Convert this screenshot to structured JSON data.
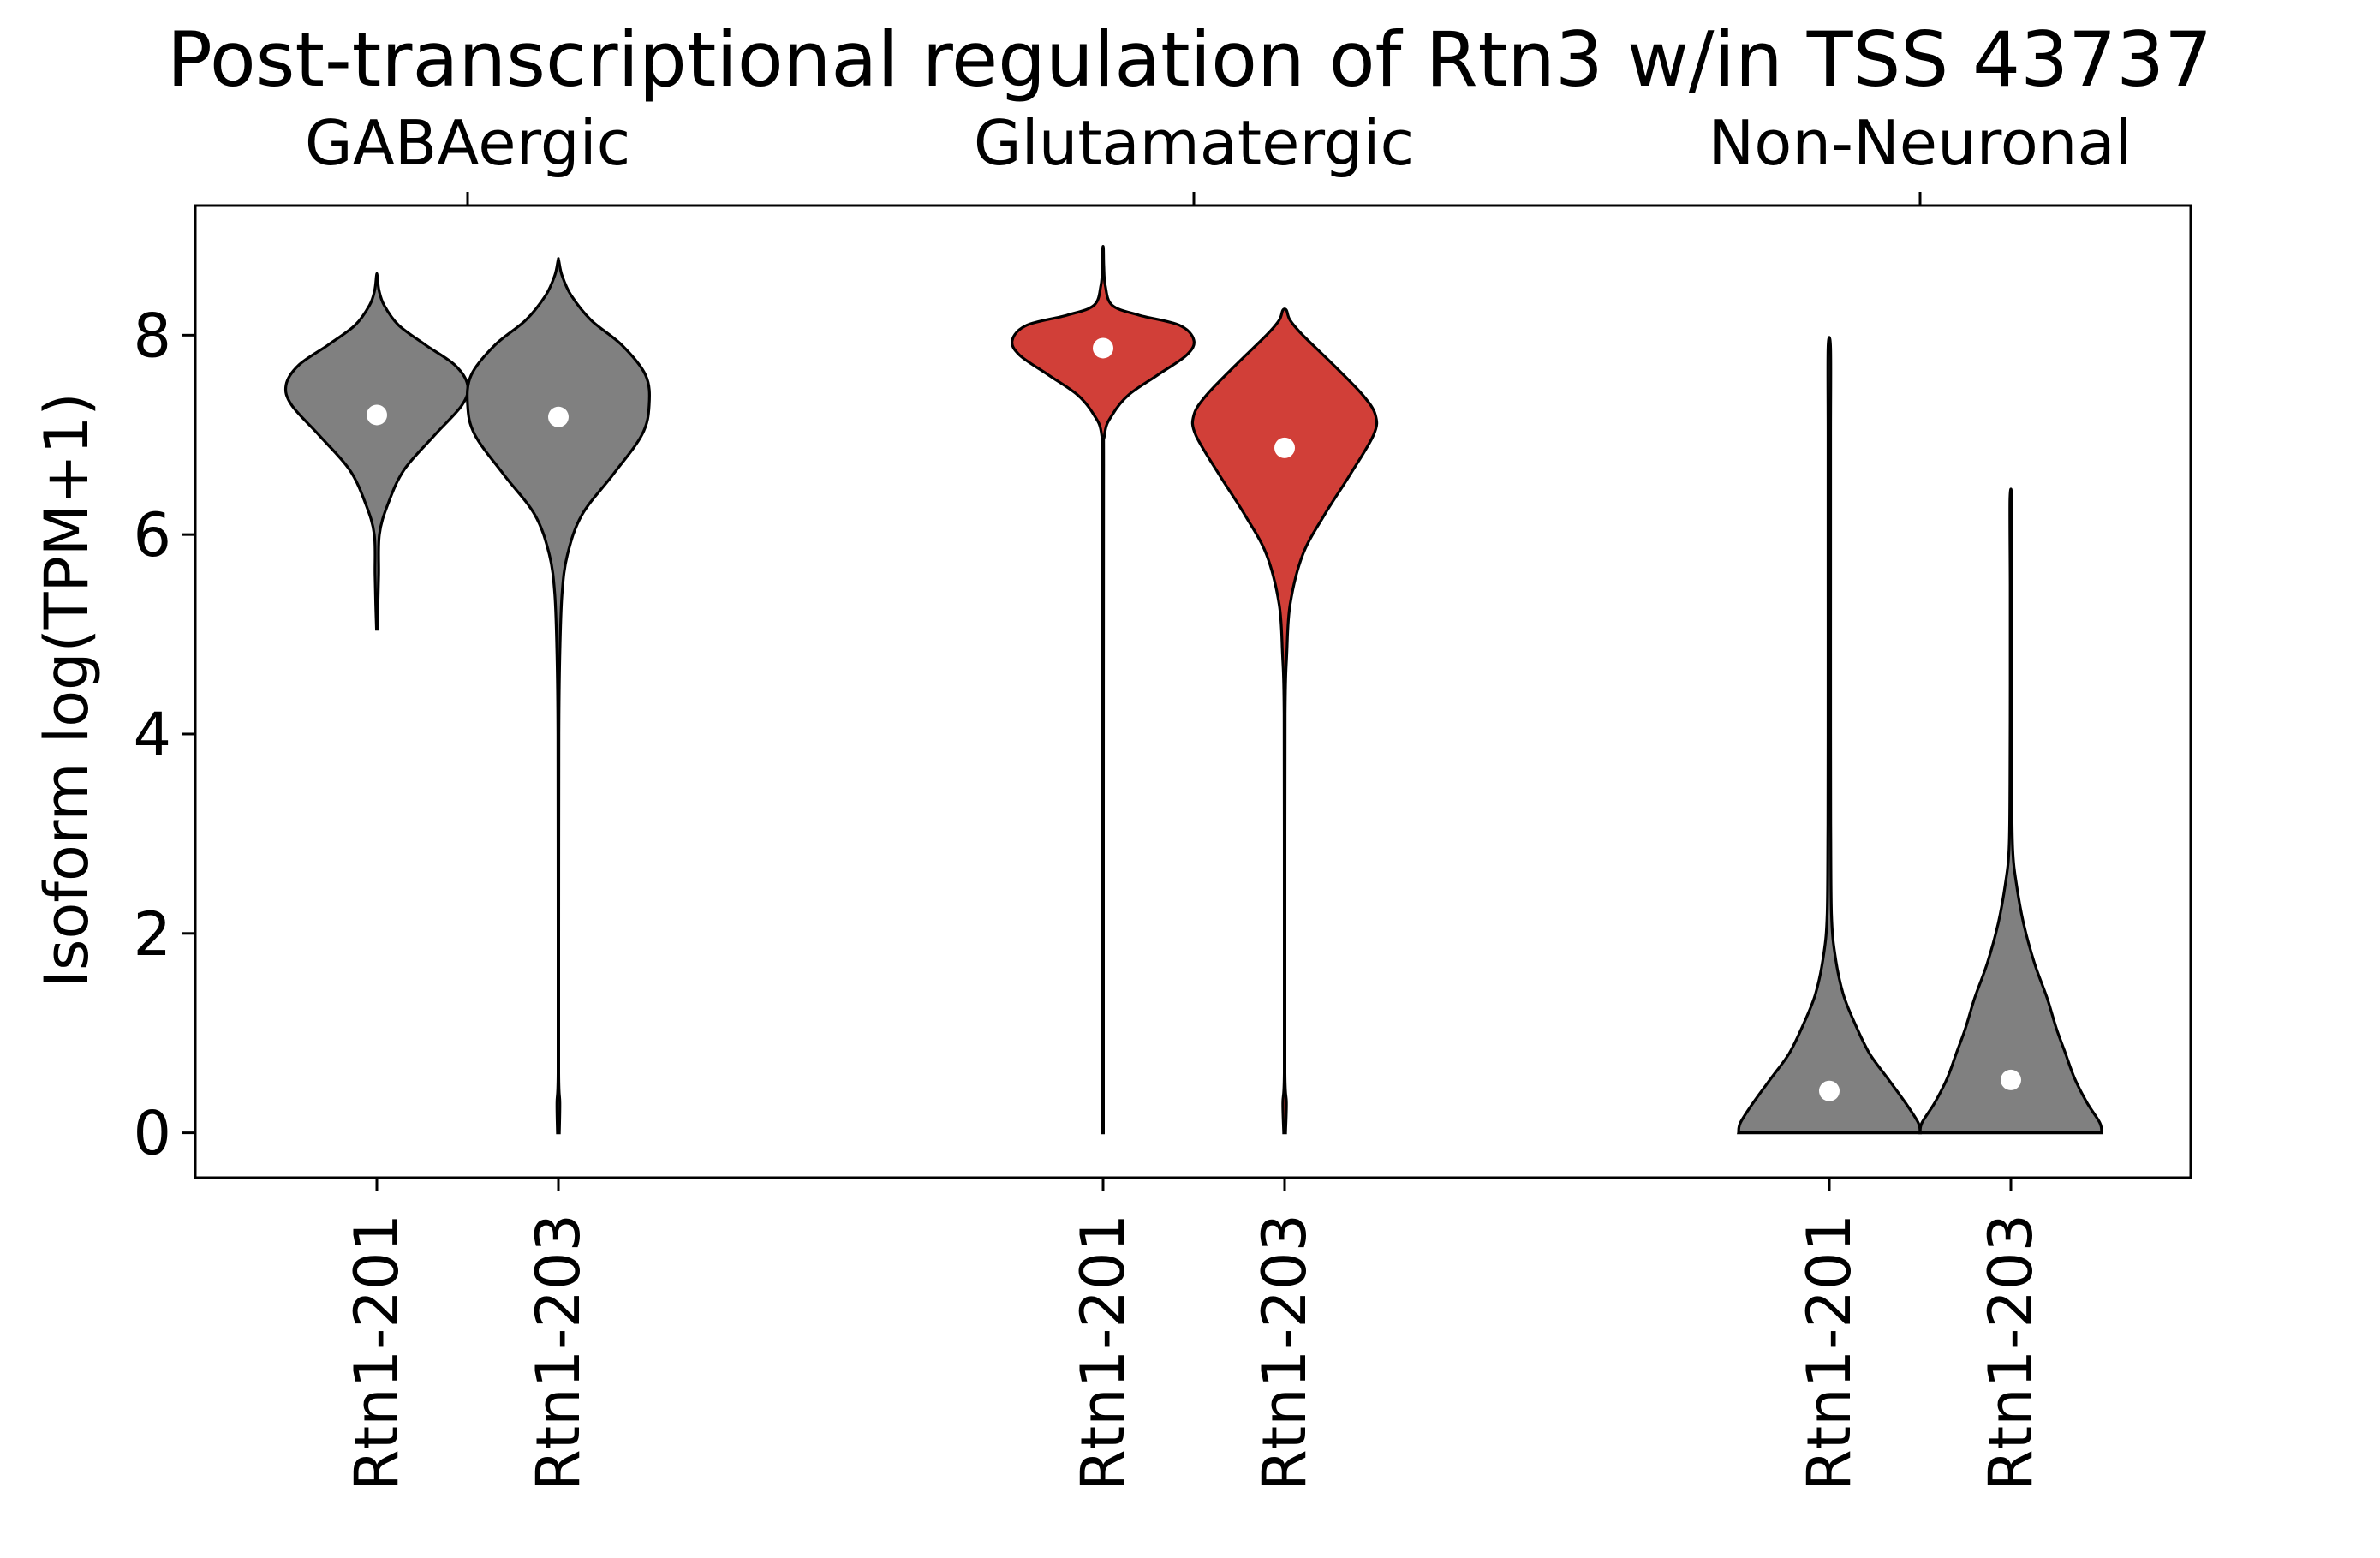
{
  "chart_data": {
    "type": "violin",
    "title": "Post-transcriptional regulation of Rtn3 w/in TSS 43737",
    "ylabel": "Isoform log(TPM+1)",
    "xlabel": "",
    "ylim": [
      -0.45,
      9.3
    ],
    "yticks": [
      0,
      2,
      4,
      6,
      8
    ],
    "grid": false,
    "groups": [
      "GABAergic",
      "Glutamatergic",
      "Non-Neuronal"
    ],
    "colors": {
      "gray": "#808080",
      "red": "#d13f38"
    },
    "violins": [
      {
        "group": "GABAergic",
        "label": "Rtn1-201",
        "color": "gray",
        "median": 7.2,
        "profile": [
          [
            5.05,
            0.002
          ],
          [
            5.3,
            0.006
          ],
          [
            5.6,
            0.01
          ],
          [
            6.0,
            0.014
          ],
          [
            6.3,
            0.06
          ],
          [
            6.65,
            0.15
          ],
          [
            7.0,
            0.32
          ],
          [
            7.3,
            0.47
          ],
          [
            7.5,
            0.5
          ],
          [
            7.7,
            0.43
          ],
          [
            7.9,
            0.27
          ],
          [
            8.1,
            0.12
          ],
          [
            8.3,
            0.04
          ],
          [
            8.45,
            0.012
          ],
          [
            8.6,
            0.002
          ]
        ]
      },
      {
        "group": "GABAergic",
        "label": "Rtn1-203",
        "color": "gray",
        "median": 7.18,
        "profile": [
          [
            0,
            0.005
          ],
          [
            0.3,
            0.008
          ],
          [
            0.6,
            0.002
          ],
          [
            2.0,
            0.002
          ],
          [
            4.0,
            0.003
          ],
          [
            4.8,
            0.008
          ],
          [
            5.4,
            0.02
          ],
          [
            5.8,
            0.05
          ],
          [
            6.2,
            0.13
          ],
          [
            6.6,
            0.3
          ],
          [
            7.0,
            0.46
          ],
          [
            7.3,
            0.5
          ],
          [
            7.6,
            0.48
          ],
          [
            7.9,
            0.35
          ],
          [
            8.15,
            0.18
          ],
          [
            8.4,
            0.07
          ],
          [
            8.6,
            0.02
          ],
          [
            8.75,
            0.002
          ]
        ]
      },
      {
        "group": "Glutamatergic",
        "label": "Rtn1-201",
        "color": "red",
        "median": 7.87,
        "profile": [
          [
            0,
            0.002
          ],
          [
            3.0,
            0.002
          ],
          [
            6.5,
            0.003
          ],
          [
            7.0,
            0.008
          ],
          [
            7.2,
            0.05
          ],
          [
            7.4,
            0.14
          ],
          [
            7.6,
            0.3
          ],
          [
            7.8,
            0.46
          ],
          [
            7.95,
            0.5
          ],
          [
            8.1,
            0.42
          ],
          [
            8.2,
            0.2
          ],
          [
            8.3,
            0.05
          ],
          [
            8.5,
            0.012
          ],
          [
            8.7,
            0.004
          ],
          [
            8.87,
            0.002
          ]
        ]
      },
      {
        "group": "Glutamatergic",
        "label": "Rtn1-203",
        "color": "red",
        "median": 6.87,
        "profile": [
          [
            0,
            0.005
          ],
          [
            0.3,
            0.01
          ],
          [
            0.6,
            0.002
          ],
          [
            2.0,
            0.002
          ],
          [
            4.2,
            0.003
          ],
          [
            4.8,
            0.012
          ],
          [
            5.3,
            0.03
          ],
          [
            5.8,
            0.1
          ],
          [
            6.2,
            0.22
          ],
          [
            6.6,
            0.36
          ],
          [
            7.0,
            0.49
          ],
          [
            7.2,
            0.5
          ],
          [
            7.4,
            0.43
          ],
          [
            7.7,
            0.27
          ],
          [
            8.0,
            0.1
          ],
          [
            8.15,
            0.03
          ],
          [
            8.25,
            0.01
          ]
        ]
      },
      {
        "group": "Non-Neuronal",
        "label": "Rtn1-201",
        "color": "gray",
        "median": 0.42,
        "profile": [
          [
            0,
            0.5
          ],
          [
            0.1,
            0.49
          ],
          [
            0.3,
            0.42
          ],
          [
            0.55,
            0.32
          ],
          [
            0.8,
            0.22
          ],
          [
            1.1,
            0.14
          ],
          [
            1.4,
            0.075
          ],
          [
            1.8,
            0.03
          ],
          [
            2.2,
            0.012
          ],
          [
            3.0,
            0.008
          ],
          [
            4.0,
            0.007
          ],
          [
            5.5,
            0.007
          ],
          [
            7.0,
            0.007
          ],
          [
            7.87,
            0.007
          ]
        ]
      },
      {
        "group": "Non-Neuronal",
        "label": "Rtn1-203",
        "color": "gray",
        "median": 0.53,
        "profile": [
          [
            0,
            0.5
          ],
          [
            0.1,
            0.49
          ],
          [
            0.3,
            0.42
          ],
          [
            0.55,
            0.35
          ],
          [
            0.8,
            0.3
          ],
          [
            1.05,
            0.25
          ],
          [
            1.35,
            0.2
          ],
          [
            1.7,
            0.13
          ],
          [
            2.1,
            0.07
          ],
          [
            2.5,
            0.03
          ],
          [
            2.85,
            0.01
          ],
          [
            3.5,
            0.005
          ],
          [
            4.5,
            0.004
          ],
          [
            5.5,
            0.004
          ],
          [
            6.35,
            0.005
          ]
        ]
      }
    ]
  }
}
